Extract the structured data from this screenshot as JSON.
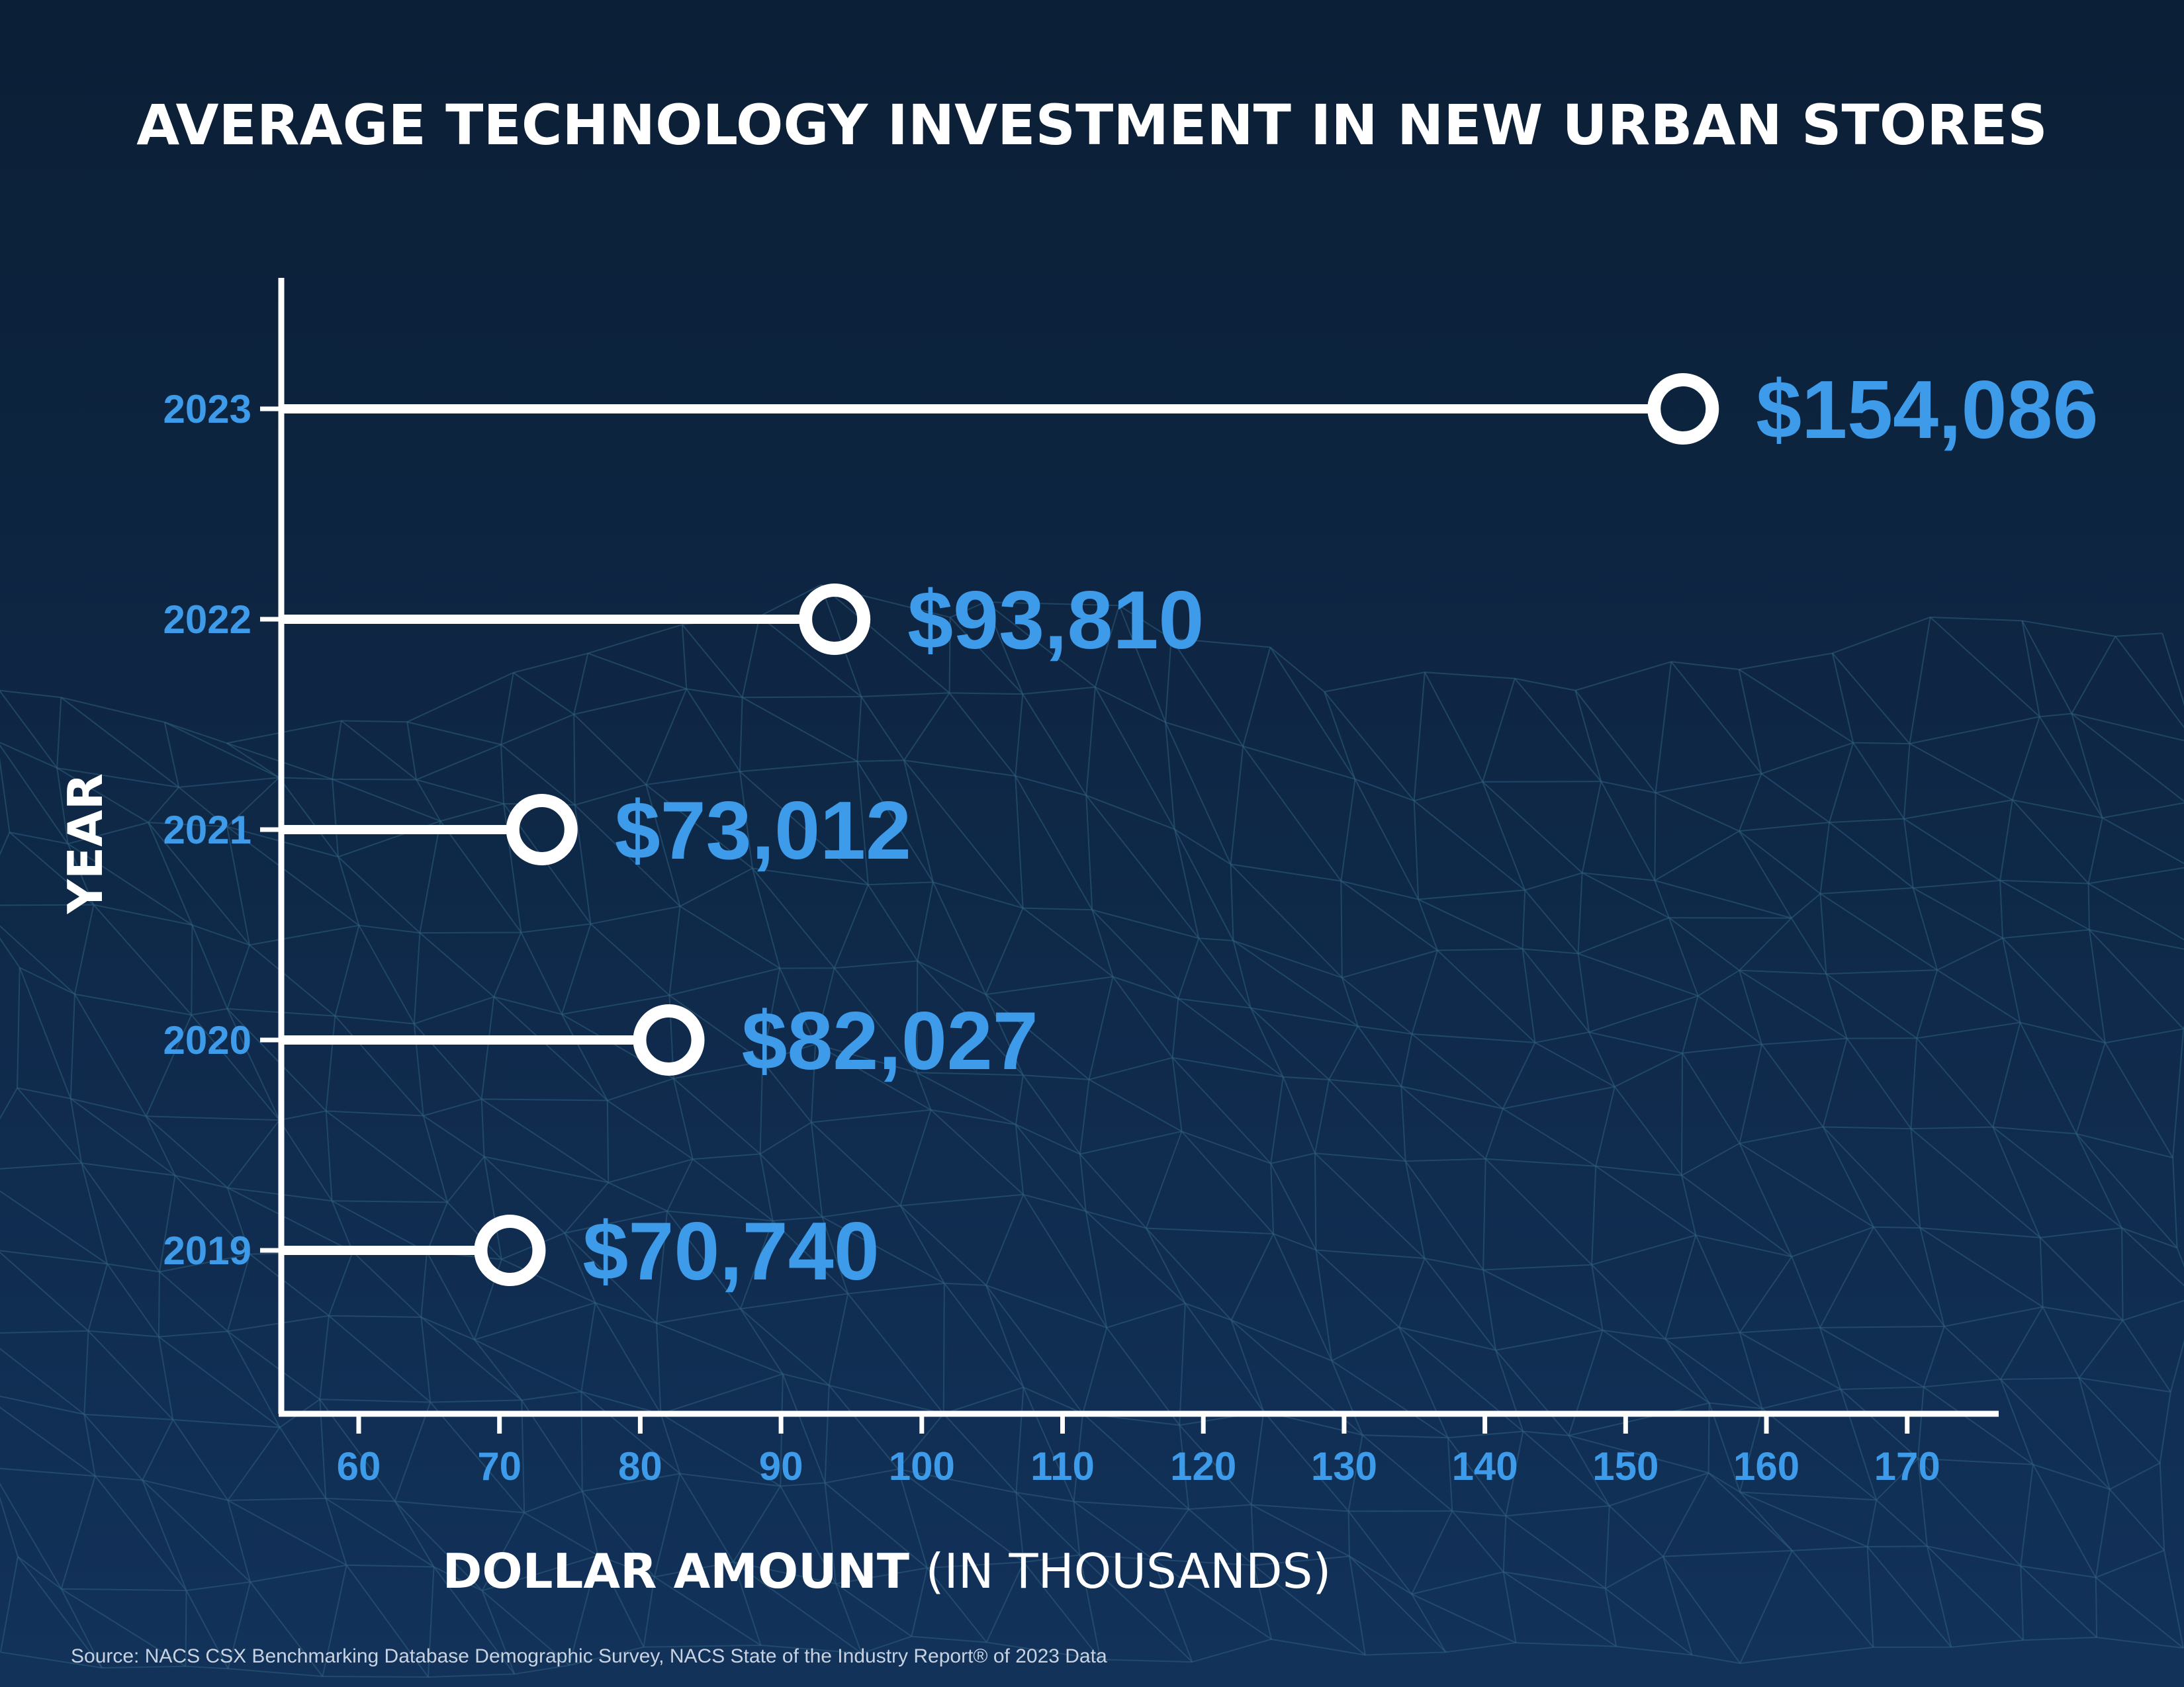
{
  "colors": {
    "background_top": "#0b1f36",
    "background_bottom": "#12325a",
    "accent": "#3d9be9",
    "line": "#ffffff"
  },
  "chart_data": {
    "type": "lollipop",
    "title": "AVERAGE TECHNOLOGY INVESTMENT IN NEW URBAN STORES",
    "categories": [
      "2023",
      "2022",
      "2021",
      "2020",
      "2019"
    ],
    "values": [
      154.086,
      93.81,
      73.012,
      82.027,
      70.74
    ],
    "value_labels": [
      "$154,086",
      "$93,810",
      "$73,012",
      "$82,027",
      "$70,740"
    ],
    "xlabel_bold": "DOLLAR AMOUNT",
    "xlabel_light": "(IN THOUSANDS)",
    "ylabel": "YEAR",
    "x_ticks": [
      60,
      70,
      80,
      90,
      100,
      110,
      120,
      130,
      140,
      150,
      160,
      170
    ],
    "xlim": [
      54.5,
      176.5
    ],
    "grid": false,
    "legend": "none"
  },
  "source": {
    "text": "Source: NACS CSX Benchmarking Database Demographic Survey, NACS State of the Industry Report® of 2023 Data"
  }
}
